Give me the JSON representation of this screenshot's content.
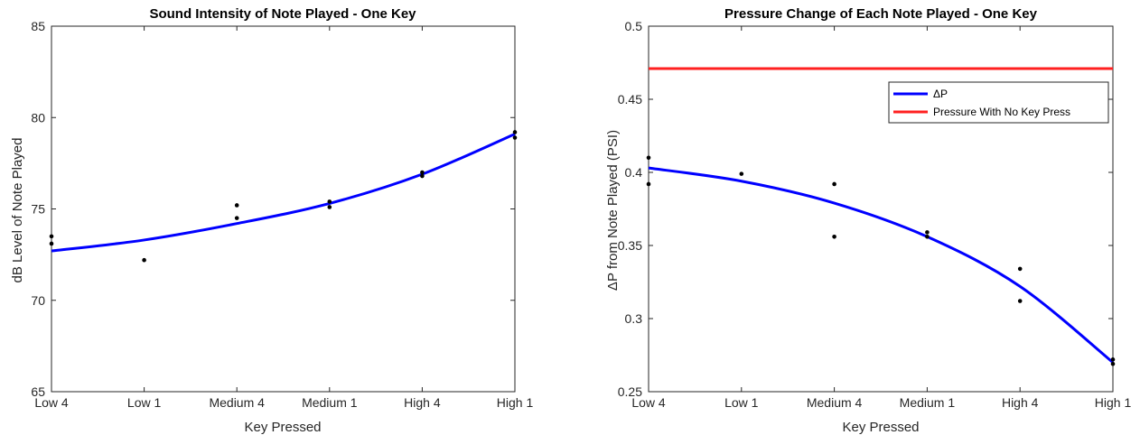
{
  "chart_data": [
    {
      "type": "scatter",
      "title": "Sound Intensity of Note Played - One Key",
      "xlabel": "Key Pressed",
      "ylabel": "dB Level of Note Played",
      "categories": [
        "Low 4",
        "Low 1",
        "Medium 4",
        "Medium 1",
        "High 4",
        "High 1"
      ],
      "ylim": [
        65,
        85
      ],
      "yticks": [
        "65",
        "70",
        "75",
        "80",
        "85"
      ],
      "grid": false,
      "legend": false,
      "points": [
        {
          "x": 1,
          "y": 73.5
        },
        {
          "x": 1,
          "y": 73.1
        },
        {
          "x": 2,
          "y": 72.2
        },
        {
          "x": 3,
          "y": 75.2
        },
        {
          "x": 3,
          "y": 74.5
        },
        {
          "x": 4,
          "y": 75.4
        },
        {
          "x": 4,
          "y": 75.1
        },
        {
          "x": 5,
          "y": 77.0
        },
        {
          "x": 5,
          "y": 76.8
        },
        {
          "x": 6,
          "y": 79.2
        },
        {
          "x": 6,
          "y": 78.9
        }
      ],
      "fit_line": {
        "x": [
          1,
          2,
          3,
          4,
          5,
          6
        ],
        "y": [
          72.7,
          73.3,
          74.2,
          75.3,
          76.9,
          79.1
        ]
      },
      "colors": {
        "fit": "#0000ff",
        "points": "#000000"
      }
    },
    {
      "type": "scatter",
      "title": "Pressure Change of Each Note Played - One Key",
      "xlabel": "Key Pressed",
      "ylabel": "ΔP from Note Played (PSI)",
      "categories": [
        "Low 4",
        "Low 1",
        "Medium 4",
        "Medium 1",
        "High 4",
        "High 1"
      ],
      "ylim": [
        0.25,
        0.5
      ],
      "yticks": [
        "0.25",
        "0.3",
        "0.35",
        "0.4",
        "0.45",
        "0.5"
      ],
      "grid": false,
      "legend": "top-right",
      "points": [
        {
          "x": 1,
          "y": 0.41
        },
        {
          "x": 1,
          "y": 0.392
        },
        {
          "x": 2,
          "y": 0.399
        },
        {
          "x": 3,
          "y": 0.392
        },
        {
          "x": 3,
          "y": 0.356
        },
        {
          "x": 4,
          "y": 0.359
        },
        {
          "x": 4,
          "y": 0.356
        },
        {
          "x": 5,
          "y": 0.334
        },
        {
          "x": 5,
          "y": 0.312
        },
        {
          "x": 6,
          "y": 0.272
        },
        {
          "x": 6,
          "y": 0.269
        }
      ],
      "series": [
        {
          "name": "ΔP",
          "x": [
            1,
            2,
            3,
            4,
            5,
            6
          ],
          "y": [
            0.403,
            0.394,
            0.379,
            0.356,
            0.322,
            0.27
          ],
          "color": "#0000ff"
        },
        {
          "name": "Pressure With No Key Press",
          "x": [
            1,
            6
          ],
          "y": [
            0.471,
            0.471
          ],
          "color": "#ff2020"
        }
      ],
      "colors": {
        "points": "#000000"
      }
    }
  ]
}
